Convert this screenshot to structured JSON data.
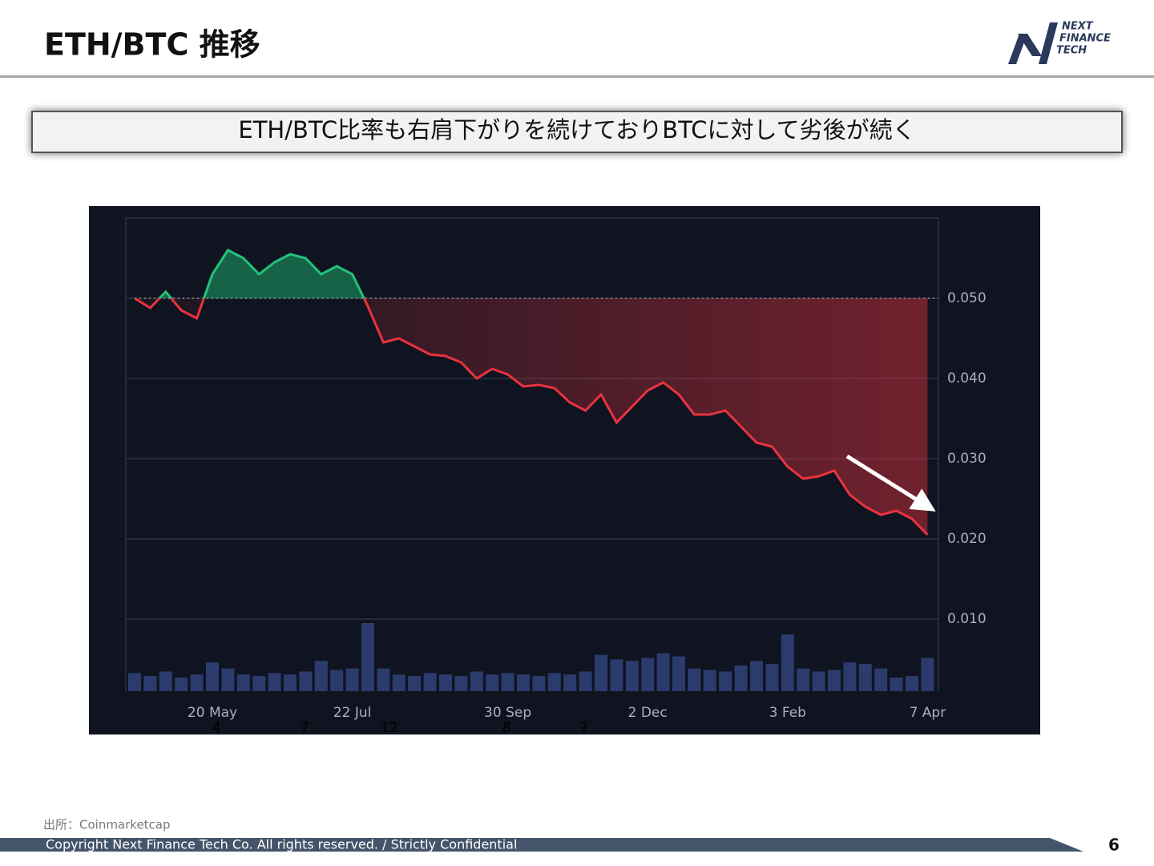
{
  "header": {
    "title": "ETH/BTC 推移",
    "logo": [
      "NEXT",
      "FINANCE",
      "TECH"
    ]
  },
  "banner": "ETH/BTC比率も右肩下がりを続けておりBTCに対して劣後が続く",
  "chart_data": {
    "type": "line",
    "categories": [
      null,
      null,
      null,
      null,
      null,
      "20 May",
      null,
      null,
      null,
      null,
      null,
      null,
      null,
      null,
      "22 Jul",
      null,
      null,
      null,
      null,
      null,
      null,
      null,
      null,
      null,
      "30 Sep",
      null,
      null,
      null,
      null,
      null,
      null,
      null,
      null,
      "2 Dec",
      null,
      null,
      null,
      null,
      null,
      null,
      null,
      null,
      "3 Feb",
      null,
      null,
      null,
      null,
      null,
      null,
      null,
      null,
      "7 Apr"
    ],
    "values": [
      0.05,
      0.0488,
      0.0508,
      0.0485,
      0.0475,
      0.053,
      0.056,
      0.055,
      0.053,
      0.0545,
      0.0555,
      0.055,
      0.053,
      0.054,
      0.053,
      0.049,
      0.0445,
      0.045,
      0.044,
      0.043,
      0.0428,
      0.042,
      0.04,
      0.0412,
      0.0405,
      0.039,
      0.0392,
      0.0388,
      0.037,
      0.036,
      0.038,
      0.0345,
      0.0365,
      0.0385,
      0.0395,
      0.038,
      0.0355,
      0.0355,
      0.036,
      0.034,
      0.032,
      0.0315,
      0.029,
      0.0275,
      0.0278,
      0.0285,
      0.0255,
      0.024,
      0.023,
      0.0235,
      0.0225,
      0.0205
    ],
    "up_color": "#22c37a",
    "down_color": "#e8333f",
    "volume": {
      "color": "#2c3b6e",
      "values": [
        24,
        20,
        26,
        18,
        22,
        38,
        30,
        22,
        20,
        24,
        22,
        26,
        40,
        28,
        30,
        90,
        30,
        22,
        20,
        24,
        22,
        20,
        26,
        22,
        24,
        22,
        20,
        24,
        22,
        26,
        48,
        42,
        40,
        44,
        50,
        46,
        30,
        28,
        26,
        34,
        40,
        36,
        75,
        30,
        26,
        28,
        38,
        36,
        30,
        18,
        20,
        44
      ]
    },
    "ylim": [
      0.001,
      0.06
    ],
    "yticks": [
      {
        "value": 0.01,
        "label": "0.010"
      },
      {
        "value": 0.02,
        "label": "0.020"
      },
      {
        "value": 0.03,
        "label": "0.030"
      },
      {
        "value": 0.04,
        "label": "0.040"
      },
      {
        "value": 0.05,
        "label": "0.050"
      }
    ],
    "grid": true,
    "annotations": [
      "4",
      "7",
      "12",
      "8",
      "7"
    ]
  },
  "source": "出所：Coinmarketcap",
  "footer": {
    "copyright": "Copyright Next Finance Tech Co. All rights reserved. / Strictly Confidential",
    "page": "6"
  }
}
